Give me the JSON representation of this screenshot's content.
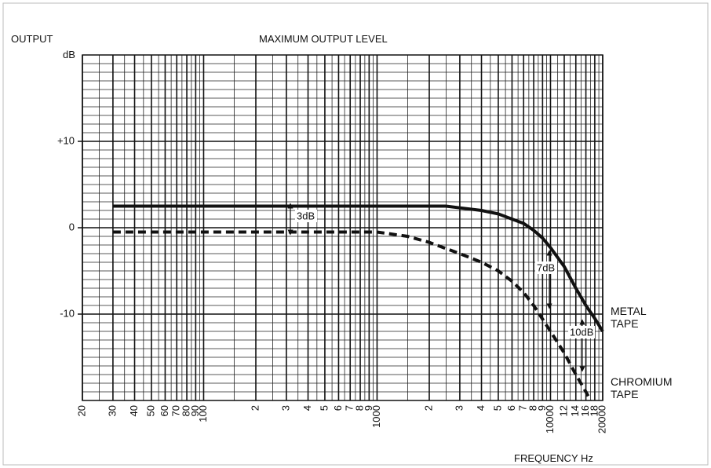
{
  "chart_data": {
    "type": "line",
    "title": "MAXIMUM OUTPUT LEVEL",
    "y_label": "OUTPUT",
    "y_unit": "dB",
    "x_label": "FREQUENCY Hz",
    "x_log": true,
    "xlim": [
      20,
      20000
    ],
    "ylim": [
      -20,
      20
    ],
    "xticks": [
      20,
      30,
      40,
      50,
      60,
      70,
      80,
      90,
      100,
      {
        "value": 200,
        "label": "2"
      },
      {
        "value": 300,
        "label": "3"
      },
      {
        "value": 400,
        "label": "4"
      },
      {
        "value": 500,
        "label": "5"
      },
      {
        "value": 600,
        "label": "6"
      },
      {
        "value": 700,
        "label": "7"
      },
      {
        "value": 800,
        "label": "8"
      },
      {
        "value": 900,
        "label": "9"
      },
      1000,
      {
        "value": 2000,
        "label": "2"
      },
      {
        "value": 3000,
        "label": "3"
      },
      {
        "value": 4000,
        "label": "4"
      },
      {
        "value": 5000,
        "label": "5"
      },
      {
        "value": 6000,
        "label": "6"
      },
      {
        "value": 7000,
        "label": "7"
      },
      {
        "value": 8000,
        "label": "8"
      },
      {
        "value": 9000,
        "label": "9"
      },
      10000,
      {
        "value": 12000,
        "label": "12"
      },
      {
        "value": 14000,
        "label": "14"
      },
      {
        "value": 16000,
        "label": "16"
      },
      {
        "value": 18000,
        "label": "18"
      },
      20000
    ],
    "yticks": [
      {
        "value": 10,
        "label": "+10"
      },
      0,
      -10
    ],
    "x_grid": [
      20,
      25,
      30,
      35,
      40,
      45,
      50,
      55,
      60,
      65,
      70,
      75,
      80,
      85,
      90,
      95,
      100,
      150,
      200,
      250,
      300,
      350,
      400,
      450,
      500,
      550,
      600,
      650,
      700,
      750,
      800,
      850,
      900,
      950,
      1000,
      1500,
      2000,
      2500,
      3000,
      3500,
      4000,
      4500,
      5000,
      5500,
      6000,
      6500,
      7000,
      7500,
      8000,
      8500,
      9000,
      9500,
      10000,
      11000,
      12000,
      13000,
      14000,
      15000,
      16000,
      17000,
      18000,
      19000,
      20000
    ],
    "y_grid": [
      -20,
      -19,
      -18,
      -17,
      -16,
      -15,
      -14,
      -13,
      -12,
      -11,
      -10,
      -9,
      -8,
      -7,
      -6,
      -5,
      -4,
      -3,
      -2,
      -1,
      0,
      1,
      2,
      3,
      4,
      5,
      6,
      7,
      8,
      9,
      10,
      11,
      12,
      13,
      14,
      15,
      16,
      17,
      18,
      19,
      20
    ],
    "series": [
      {
        "name": "METAL TAPE",
        "color": "#111111",
        "dash": false,
        "x": [
          30,
          1000,
          2500,
          3000,
          4000,
          5000,
          6000,
          7000,
          8000,
          9000,
          10000,
          12000,
          14000,
          16000,
          18000,
          20000
        ],
        "values": [
          2.5,
          2.5,
          2.5,
          2.3,
          2,
          1.6,
          1,
          0.5,
          -0.3,
          -1.2,
          -2.3,
          -4.5,
          -7,
          -9,
          -10.5,
          -12
        ]
      },
      {
        "name": "CHROMIUM TAPE",
        "color": "#111111",
        "dash": true,
        "x": [
          30,
          1000,
          1500,
          2000,
          3000,
          4000,
          5000,
          6000,
          7000,
          8000,
          10000,
          12000,
          14000,
          16000,
          17000
        ],
        "values": [
          -0.5,
          -0.5,
          -1,
          -1.7,
          -3,
          -4,
          -5,
          -6.2,
          -7.5,
          -9,
          -12,
          -14.5,
          -17,
          -19,
          -20
        ]
      }
    ],
    "annotations": [
      "3dB",
      "7dB",
      "10dB"
    ]
  }
}
